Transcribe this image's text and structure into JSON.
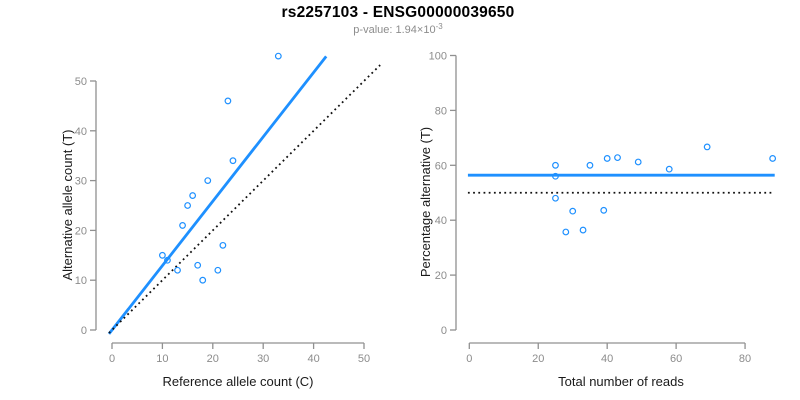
{
  "header": {
    "title": "rs2257103 - ENSG00000039650",
    "pvalue_text": "p-value: 1.94×10",
    "pvalue_exponent": "-3"
  },
  "colors": {
    "accent_blue": "#1E90FF",
    "axis_line_gray": "#909090",
    "tick_label_gray": "#8C8C8C",
    "axis_title_color": "#1A1A1A",
    "dotted_line_black": "#111111",
    "subtitle_gray": "#8C8C8C"
  },
  "chart_data": [
    {
      "type": "scatter",
      "xlabel": "Reference allele count (C)",
      "ylabel": "Alternative allele count (T)",
      "xlim": [
        0,
        50
      ],
      "ylim": [
        0,
        55
      ],
      "x_ticks": [
        0,
        10,
        20,
        30,
        40,
        50
      ],
      "y_ticks": [
        0,
        10,
        20,
        30,
        40,
        50
      ],
      "grid": false,
      "points": [
        [
          10,
          15
        ],
        [
          11,
          14
        ],
        [
          13,
          12
        ],
        [
          14,
          21
        ],
        [
          15,
          25
        ],
        [
          16,
          27
        ],
        [
          17,
          13
        ],
        [
          18,
          10
        ],
        [
          19,
          30
        ],
        [
          21,
          12
        ],
        [
          22,
          17
        ],
        [
          23,
          46
        ],
        [
          24,
          34
        ],
        [
          33,
          55
        ]
      ],
      "lines": [
        {
          "name": "fit-line",
          "style": "solid",
          "color_key": "accent_blue",
          "x1": -0.6,
          "y1": -0.78,
          "x2": 42.5,
          "y2": 54.95
        },
        {
          "name": "identity-line",
          "style": "dotted",
          "color_key": "dotted_line_black",
          "x1": -0.6,
          "y1": -0.6,
          "x2": 53.2,
          "y2": 53.2
        }
      ]
    },
    {
      "type": "scatter",
      "xlabel": "Total number of reads",
      "ylabel": "Percentage alternative (T)",
      "xlim": [
        0,
        90
      ],
      "ylim": [
        0,
        100
      ],
      "x_ticks": [
        0,
        20,
        40,
        60,
        80
      ],
      "y_ticks": [
        0,
        20,
        40,
        60,
        80,
        100
      ],
      "grid": false,
      "points": [
        [
          25,
          60
        ],
        [
          25,
          56
        ],
        [
          25,
          48
        ],
        [
          28,
          35.7
        ],
        [
          30,
          43.3
        ],
        [
          33,
          36.4
        ],
        [
          35,
          60
        ],
        [
          39,
          43.6
        ],
        [
          40,
          62.5
        ],
        [
          43,
          62.8
        ],
        [
          49,
          61.2
        ],
        [
          58,
          58.6
        ],
        [
          69,
          66.7
        ],
        [
          88,
          62.5
        ]
      ],
      "lines": [
        {
          "name": "mean-percentage-line",
          "style": "solid",
          "color_key": "accent_blue",
          "x1": -0.4,
          "y1": 56.4,
          "x2": 88.6,
          "y2": 56.4
        },
        {
          "name": "null-50pct-line",
          "style": "dotted",
          "color_key": "dotted_line_black",
          "x1": -0.4,
          "y1": 50,
          "x2": 88.6,
          "y2": 50
        }
      ]
    }
  ]
}
